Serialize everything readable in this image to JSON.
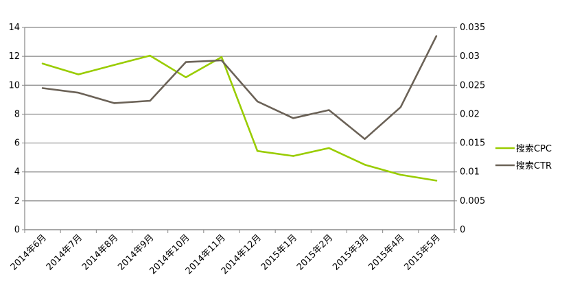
{
  "chart_data": {
    "type": "line",
    "categories": [
      "2014年6月",
      "2014年7月",
      "2014年8月",
      "2014年9月",
      "2014年10月",
      "2014年11月",
      "2014年12月",
      "2015年1月",
      "2015年2月",
      "2015年3月",
      "2015年4月",
      "2015年5月"
    ],
    "series": [
      {
        "name": "搜索CPC",
        "axis": "left",
        "color": "#99cc00",
        "values": [
          11.5,
          10.75,
          11.4,
          12.05,
          10.55,
          11.95,
          5.45,
          5.1,
          5.65,
          4.5,
          3.8,
          3.4
        ]
      },
      {
        "name": "搜索CTR",
        "axis": "right",
        "color": "#6b6257",
        "values": [
          0.0245,
          0.0237,
          0.0219,
          0.0223,
          0.029,
          0.0293,
          0.0222,
          0.0193,
          0.0207,
          0.0157,
          0.0212,
          0.0335
        ]
      }
    ],
    "y_left": {
      "min": 0,
      "max": 14,
      "ticks": [
        "0",
        "2",
        "4",
        "6",
        "8",
        "10",
        "12",
        "14"
      ]
    },
    "y_right": {
      "min": 0,
      "max": 0.035,
      "ticks": [
        "0",
        "0.005",
        "0.01",
        "0.015",
        "0.02",
        "0.025",
        "0.03",
        "0.035"
      ]
    },
    "grid": true,
    "legend_position": "right"
  }
}
